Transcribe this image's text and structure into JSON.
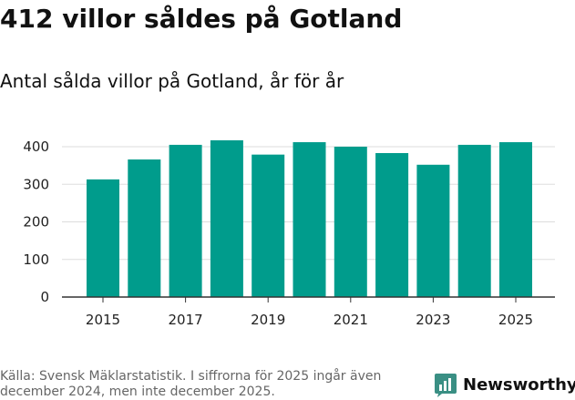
{
  "title": "412 villor såldes på Gotland",
  "subtitle": "Antal sålda villor på Gotland, år för år",
  "chart_data": {
    "type": "bar",
    "categories": [
      "2015",
      "2016",
      "2017",
      "2018",
      "2019",
      "2020",
      "2021",
      "2022",
      "2023",
      "2024",
      "2025"
    ],
    "values": [
      313,
      366,
      405,
      417,
      379,
      412,
      400,
      383,
      352,
      405,
      412
    ],
    "x_tick_labels": [
      "2015",
      "2017",
      "2019",
      "2021",
      "2023",
      "2025"
    ],
    "y_ticks": [
      0,
      100,
      200,
      300,
      400
    ],
    "ylim": [
      0,
      400
    ],
    "grid": true,
    "legend": "none"
  },
  "footer": {
    "source": "Källa: Svensk Mäklarstatistik. I siffrorna för 2025 ingår även december 2024, men inte december 2025.",
    "brand": "Newsworthy"
  },
  "colors": {
    "bar": "#009c8c",
    "brand": "#3a8f84",
    "grid": "#dddddd",
    "axis": "#333333"
  }
}
